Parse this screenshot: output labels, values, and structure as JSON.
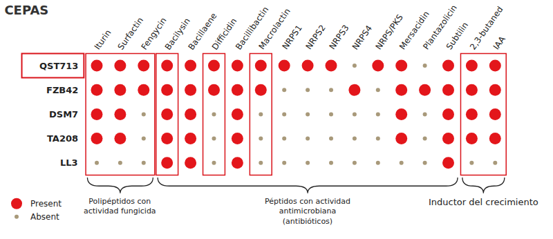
{
  "chart_data": {
    "type": "scatter",
    "title": "CEPAS",
    "categories": [
      "Iturin",
      "Surfactin",
      "Fengycin",
      "Bacilysin",
      "Bacillaene",
      "Difficidin",
      "Bacillibactin",
      "Macrolactin",
      "NRPS1",
      "NRPS2",
      "NRPS3",
      "NRPS4",
      "NRPS/PKS",
      "Mersacidin",
      "Plantazolicin",
      "Subtilin",
      "2,3-butaned",
      "IAA"
    ],
    "rows": [
      "QST713",
      "FZB42",
      "DSM7",
      "TA208",
      "LL3"
    ],
    "series": [
      {
        "name": "Present",
        "color": "#e3161b"
      },
      {
        "name": "Absent",
        "color": "#a8997a"
      }
    ],
    "cells": [
      [
        true,
        true,
        true,
        true,
        true,
        true,
        true,
        true,
        true,
        true,
        true,
        false,
        true,
        true,
        false,
        true,
        true,
        true
      ],
      [
        true,
        true,
        true,
        true,
        true,
        true,
        true,
        true,
        false,
        false,
        false,
        true,
        false,
        true,
        true,
        true,
        true,
        true
      ],
      [
        true,
        true,
        false,
        true,
        true,
        false,
        true,
        false,
        false,
        false,
        false,
        false,
        false,
        true,
        false,
        true,
        true,
        true
      ],
      [
        true,
        true,
        false,
        true,
        true,
        false,
        true,
        false,
        false,
        false,
        false,
        false,
        false,
        true,
        false,
        true,
        true,
        true
      ],
      [
        false,
        false,
        false,
        true,
        true,
        false,
        true,
        false,
        false,
        false,
        false,
        false,
        false,
        false,
        false,
        true,
        false,
        false
      ]
    ],
    "highlight": "QST713",
    "boxed_columns": [
      [
        "Iturin",
        "Fengycin"
      ],
      [
        "Bacilysin",
        "Bacilysin"
      ],
      [
        "Difficidin",
        "Difficidin"
      ],
      [
        "Macrolactin",
        "Macrolactin"
      ],
      [
        "2,3-butaned",
        "IAA"
      ]
    ],
    "groups": [
      {
        "label": [
          "Polipéptidos con",
          "actividad fungicida"
        ],
        "from": "Iturin",
        "to": "Fengycin"
      },
      {
        "label": [
          "Péptidos con actividad",
          "antimicrobiana",
          "(antibióticos)"
        ],
        "from": "Bacilysin",
        "to": "Subtilin"
      },
      {
        "label": [
          "Inductor del crecimiento"
        ],
        "from": "2,3-butaned",
        "to": "IAA"
      }
    ],
    "legend": "bottom left",
    "tick_labels": false,
    "grid": false
  }
}
